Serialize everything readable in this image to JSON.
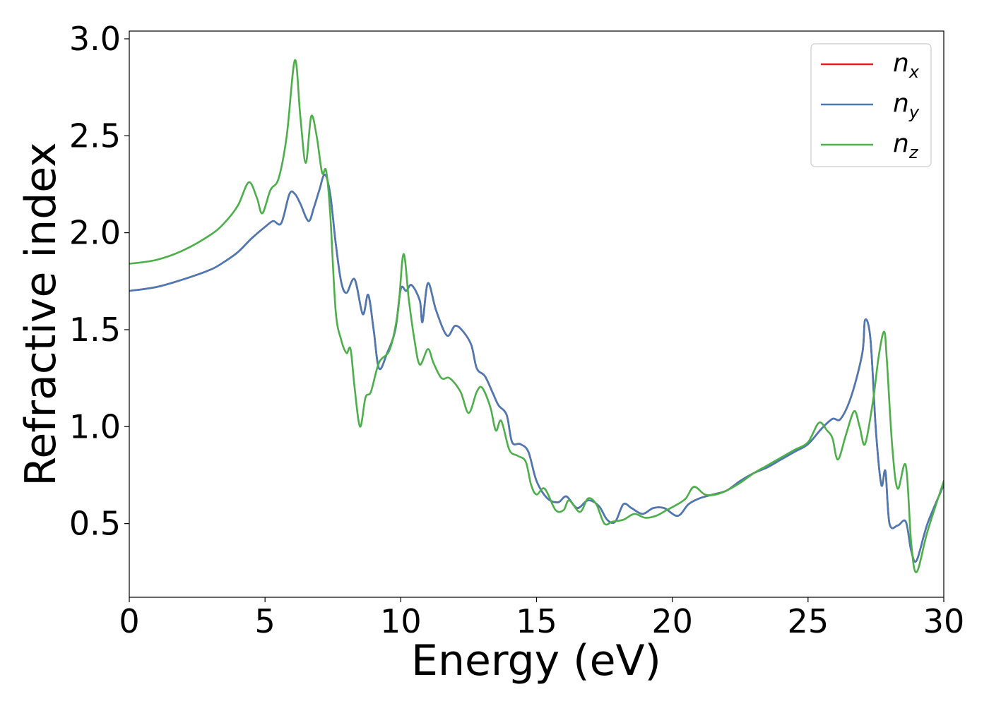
{
  "chart_data": {
    "type": "line",
    "title": "",
    "xlabel": "Energy (eV)",
    "ylabel": "Refractive index",
    "xlim": [
      0,
      30
    ],
    "ylim": [
      0.12,
      3.04
    ],
    "xticks": [
      0,
      5,
      10,
      15,
      20,
      25,
      30
    ],
    "yticks": [
      0.5,
      1.0,
      1.5,
      2.0,
      2.5,
      3.0
    ],
    "xtick_labels": [
      "0",
      "5",
      "10",
      "15",
      "20",
      "25",
      "30"
    ],
    "ytick_labels": [
      "0.5",
      "1.0",
      "1.5",
      "2.0",
      "2.5",
      "3.0"
    ],
    "grid": false,
    "legend_position": "top-right",
    "series": [
      {
        "name": "n_x",
        "legend_base": "n",
        "legend_sub": "x",
        "color": "#e41a1c",
        "points": [
          [
            0,
            1.7
          ],
          [
            1,
            1.72
          ],
          [
            2,
            1.76
          ],
          [
            3,
            1.81
          ],
          [
            3.5,
            1.85
          ],
          [
            4,
            1.9
          ],
          [
            4.5,
            1.97
          ],
          [
            5,
            2.03
          ],
          [
            5.3,
            2.06
          ],
          [
            5.6,
            2.05
          ],
          [
            5.9,
            2.2
          ],
          [
            6.1,
            2.2
          ],
          [
            6.3,
            2.15
          ],
          [
            6.6,
            2.06
          ],
          [
            6.8,
            2.13
          ],
          [
            7.0,
            2.22
          ],
          [
            7.2,
            2.3
          ],
          [
            7.4,
            2.2
          ],
          [
            7.6,
            1.95
          ],
          [
            7.8,
            1.75
          ],
          [
            8.0,
            1.69
          ],
          [
            8.3,
            1.76
          ],
          [
            8.6,
            1.58
          ],
          [
            8.8,
            1.68
          ],
          [
            9.0,
            1.5
          ],
          [
            9.2,
            1.3
          ],
          [
            9.5,
            1.38
          ],
          [
            9.8,
            1.5
          ],
          [
            10.0,
            1.71
          ],
          [
            10.2,
            1.7
          ],
          [
            10.4,
            1.73
          ],
          [
            10.7,
            1.65
          ],
          [
            10.8,
            1.54
          ],
          [
            11.0,
            1.74
          ],
          [
            11.3,
            1.6
          ],
          [
            11.7,
            1.47
          ],
          [
            12.0,
            1.52
          ],
          [
            12.3,
            1.49
          ],
          [
            12.6,
            1.42
          ],
          [
            12.8,
            1.3
          ],
          [
            13.1,
            1.26
          ],
          [
            13.4,
            1.17
          ],
          [
            13.6,
            1.11
          ],
          [
            13.9,
            1.06
          ],
          [
            14.1,
            0.92
          ],
          [
            14.4,
            0.91
          ],
          [
            14.7,
            0.87
          ],
          [
            15.0,
            0.72
          ],
          [
            15.4,
            0.63
          ],
          [
            15.8,
            0.61
          ],
          [
            16.1,
            0.64
          ],
          [
            16.5,
            0.58
          ],
          [
            16.9,
            0.62
          ],
          [
            17.3,
            0.59
          ],
          [
            17.6,
            0.52
          ],
          [
            17.9,
            0.51
          ],
          [
            18.2,
            0.6
          ],
          [
            18.5,
            0.58
          ],
          [
            18.9,
            0.55
          ],
          [
            19.3,
            0.58
          ],
          [
            19.7,
            0.58
          ],
          [
            20.2,
            0.54
          ],
          [
            20.6,
            0.6
          ],
          [
            21.0,
            0.63
          ],
          [
            21.5,
            0.65
          ],
          [
            22.0,
            0.67
          ],
          [
            22.5,
            0.72
          ],
          [
            23.0,
            0.76
          ],
          [
            23.5,
            0.79
          ],
          [
            24.0,
            0.83
          ],
          [
            24.5,
            0.87
          ],
          [
            25.0,
            0.91
          ],
          [
            25.5,
            0.99
          ],
          [
            25.9,
            1.04
          ],
          [
            26.2,
            1.04
          ],
          [
            26.6,
            1.16
          ],
          [
            27.0,
            1.38
          ],
          [
            27.1,
            1.55
          ],
          [
            27.3,
            1.45
          ],
          [
            27.5,
            0.98
          ],
          [
            27.7,
            0.7
          ],
          [
            27.85,
            0.77
          ],
          [
            28.0,
            0.5
          ],
          [
            28.3,
            0.49
          ],
          [
            28.6,
            0.51
          ],
          [
            28.8,
            0.36
          ],
          [
            29.0,
            0.31
          ],
          [
            29.4,
            0.5
          ],
          [
            30.0,
            0.7
          ]
        ]
      },
      {
        "name": "n_y",
        "legend_base": "n",
        "legend_sub": "y",
        "color": "#4a7ab5",
        "points": [
          [
            0,
            1.7
          ],
          [
            1,
            1.72
          ],
          [
            2,
            1.76
          ],
          [
            3,
            1.81
          ],
          [
            3.5,
            1.85
          ],
          [
            4,
            1.9
          ],
          [
            4.5,
            1.97
          ],
          [
            5,
            2.03
          ],
          [
            5.3,
            2.06
          ],
          [
            5.6,
            2.05
          ],
          [
            5.9,
            2.2
          ],
          [
            6.1,
            2.2
          ],
          [
            6.3,
            2.15
          ],
          [
            6.6,
            2.06
          ],
          [
            6.8,
            2.13
          ],
          [
            7.0,
            2.22
          ],
          [
            7.2,
            2.3
          ],
          [
            7.4,
            2.2
          ],
          [
            7.6,
            1.95
          ],
          [
            7.8,
            1.75
          ],
          [
            8.0,
            1.69
          ],
          [
            8.3,
            1.76
          ],
          [
            8.6,
            1.58
          ],
          [
            8.8,
            1.68
          ],
          [
            9.0,
            1.5
          ],
          [
            9.2,
            1.3
          ],
          [
            9.5,
            1.38
          ],
          [
            9.8,
            1.5
          ],
          [
            10.0,
            1.71
          ],
          [
            10.2,
            1.7
          ],
          [
            10.4,
            1.73
          ],
          [
            10.7,
            1.65
          ],
          [
            10.8,
            1.54
          ],
          [
            11.0,
            1.74
          ],
          [
            11.3,
            1.6
          ],
          [
            11.7,
            1.47
          ],
          [
            12.0,
            1.52
          ],
          [
            12.3,
            1.49
          ],
          [
            12.6,
            1.42
          ],
          [
            12.8,
            1.3
          ],
          [
            13.1,
            1.26
          ],
          [
            13.4,
            1.17
          ],
          [
            13.6,
            1.11
          ],
          [
            13.9,
            1.06
          ],
          [
            14.1,
            0.92
          ],
          [
            14.4,
            0.91
          ],
          [
            14.7,
            0.87
          ],
          [
            15.0,
            0.72
          ],
          [
            15.4,
            0.63
          ],
          [
            15.8,
            0.61
          ],
          [
            16.1,
            0.64
          ],
          [
            16.5,
            0.58
          ],
          [
            16.9,
            0.62
          ],
          [
            17.3,
            0.59
          ],
          [
            17.6,
            0.52
          ],
          [
            17.9,
            0.51
          ],
          [
            18.2,
            0.6
          ],
          [
            18.5,
            0.58
          ],
          [
            18.9,
            0.55
          ],
          [
            19.3,
            0.58
          ],
          [
            19.7,
            0.58
          ],
          [
            20.2,
            0.54
          ],
          [
            20.6,
            0.6
          ],
          [
            21.0,
            0.63
          ],
          [
            21.5,
            0.65
          ],
          [
            22.0,
            0.67
          ],
          [
            22.5,
            0.72
          ],
          [
            23.0,
            0.76
          ],
          [
            23.5,
            0.79
          ],
          [
            24.0,
            0.83
          ],
          [
            24.5,
            0.87
          ],
          [
            25.0,
            0.91
          ],
          [
            25.5,
            0.99
          ],
          [
            25.9,
            1.04
          ],
          [
            26.2,
            1.04
          ],
          [
            26.6,
            1.16
          ],
          [
            27.0,
            1.38
          ],
          [
            27.1,
            1.55
          ],
          [
            27.3,
            1.45
          ],
          [
            27.5,
            0.98
          ],
          [
            27.7,
            0.7
          ],
          [
            27.85,
            0.77
          ],
          [
            28.0,
            0.5
          ],
          [
            28.3,
            0.49
          ],
          [
            28.6,
            0.51
          ],
          [
            28.8,
            0.36
          ],
          [
            29.0,
            0.31
          ],
          [
            29.4,
            0.5
          ],
          [
            30.0,
            0.7
          ]
        ]
      },
      {
        "name": "n_z",
        "legend_base": "n",
        "legend_sub": "z",
        "color": "#4daf4a",
        "points": [
          [
            0,
            1.84
          ],
          [
            1,
            1.86
          ],
          [
            2,
            1.91
          ],
          [
            3,
            1.99
          ],
          [
            3.5,
            2.05
          ],
          [
            4,
            2.14
          ],
          [
            4.4,
            2.26
          ],
          [
            4.7,
            2.18
          ],
          [
            4.9,
            2.1
          ],
          [
            5.2,
            2.22
          ],
          [
            5.5,
            2.28
          ],
          [
            5.8,
            2.5
          ],
          [
            6.1,
            2.89
          ],
          [
            6.3,
            2.6
          ],
          [
            6.5,
            2.36
          ],
          [
            6.7,
            2.6
          ],
          [
            6.9,
            2.5
          ],
          [
            7.1,
            2.31
          ],
          [
            7.25,
            2.32
          ],
          [
            7.4,
            2.1
          ],
          [
            7.6,
            1.6
          ],
          [
            7.8,
            1.45
          ],
          [
            8.0,
            1.38
          ],
          [
            8.15,
            1.4
          ],
          [
            8.3,
            1.2
          ],
          [
            8.5,
            1.0
          ],
          [
            8.7,
            1.15
          ],
          [
            8.9,
            1.18
          ],
          [
            9.2,
            1.33
          ],
          [
            9.6,
            1.4
          ],
          [
            9.9,
            1.6
          ],
          [
            10.1,
            1.89
          ],
          [
            10.3,
            1.65
          ],
          [
            10.5,
            1.45
          ],
          [
            10.7,
            1.32
          ],
          [
            11.0,
            1.4
          ],
          [
            11.2,
            1.33
          ],
          [
            11.5,
            1.25
          ],
          [
            11.8,
            1.25
          ],
          [
            12.2,
            1.18
          ],
          [
            12.5,
            1.07
          ],
          [
            12.8,
            1.18
          ],
          [
            13.0,
            1.2
          ],
          [
            13.3,
            1.1
          ],
          [
            13.5,
            0.98
          ],
          [
            13.7,
            1.03
          ],
          [
            14.0,
            0.88
          ],
          [
            14.3,
            0.85
          ],
          [
            14.6,
            0.82
          ],
          [
            14.8,
            0.7
          ],
          [
            15.0,
            0.65
          ],
          [
            15.3,
            0.68
          ],
          [
            15.7,
            0.57
          ],
          [
            16.0,
            0.57
          ],
          [
            16.2,
            0.62
          ],
          [
            16.6,
            0.56
          ],
          [
            16.9,
            0.63
          ],
          [
            17.2,
            0.6
          ],
          [
            17.5,
            0.5
          ],
          [
            17.8,
            0.51
          ],
          [
            18.2,
            0.52
          ],
          [
            18.6,
            0.55
          ],
          [
            19.0,
            0.53
          ],
          [
            19.4,
            0.54
          ],
          [
            19.8,
            0.57
          ],
          [
            20.2,
            0.6
          ],
          [
            20.5,
            0.63
          ],
          [
            20.8,
            0.69
          ],
          [
            21.2,
            0.65
          ],
          [
            21.6,
            0.65
          ],
          [
            22.0,
            0.67
          ],
          [
            22.5,
            0.71
          ],
          [
            23.0,
            0.76
          ],
          [
            23.5,
            0.8
          ],
          [
            24.0,
            0.84
          ],
          [
            24.5,
            0.88
          ],
          [
            25.0,
            0.92
          ],
          [
            25.4,
            1.02
          ],
          [
            25.7,
            0.98
          ],
          [
            25.9,
            0.94
          ],
          [
            26.1,
            0.83
          ],
          [
            26.4,
            0.96
          ],
          [
            26.7,
            1.08
          ],
          [
            26.9,
            1.0
          ],
          [
            27.1,
            0.91
          ],
          [
            27.4,
            1.14
          ],
          [
            27.6,
            1.36
          ],
          [
            27.8,
            1.49
          ],
          [
            27.9,
            1.35
          ],
          [
            28.1,
            0.9
          ],
          [
            28.3,
            0.68
          ],
          [
            28.6,
            0.8
          ],
          [
            28.8,
            0.4
          ],
          [
            29.0,
            0.25
          ],
          [
            29.4,
            0.46
          ],
          [
            30.0,
            0.72
          ]
        ]
      }
    ]
  }
}
